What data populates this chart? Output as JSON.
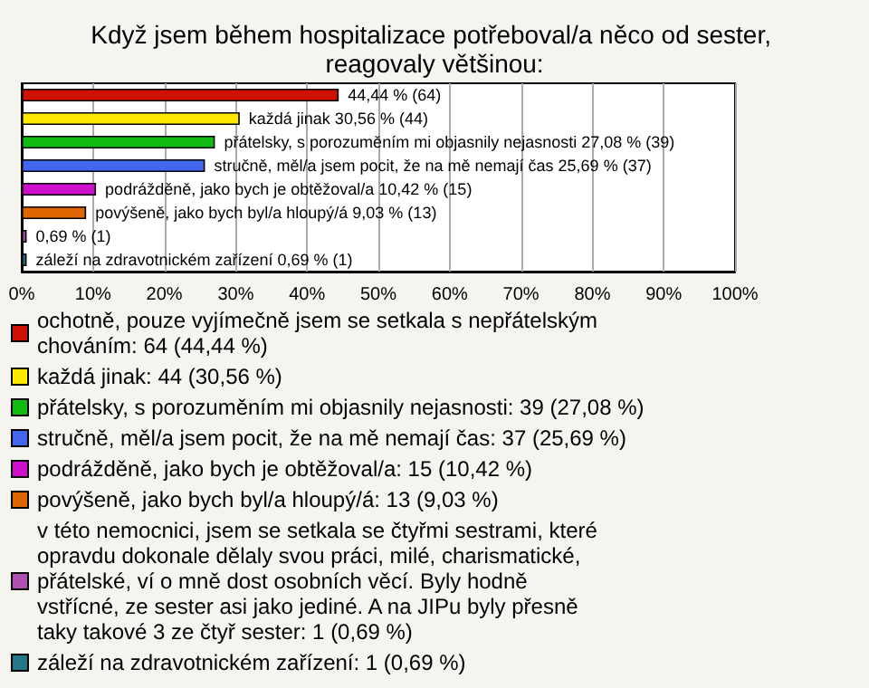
{
  "chart_data": {
    "type": "bar",
    "orientation": "horizontal",
    "stacked": true,
    "title": "Když jsem během hospitalizace potřeboval/a něco od sester, reagovaly většinou:",
    "categories": [
      null,
      null,
      null,
      null,
      null,
      null,
      null,
      null
    ],
    "series": [
      {
        "name": "ochotně, pouze vyjímečně jsem se setkala s nepřátelským chováním: 64 (44,44 %)",
        "color": "#cc1100",
        "values": [
          44.44,
          null,
          null,
          null,
          null,
          null,
          null,
          null
        ],
        "value_labels": [
          "44,44 % (64)",
          null,
          null,
          null,
          null,
          null,
          null,
          null
        ]
      },
      {
        "name": "každá jinak: 44 (30,56 %)",
        "color": "#ffe800",
        "values": [
          null,
          30.56,
          null,
          null,
          null,
          null,
          null,
          null
        ],
        "value_labels": [
          null,
          "každá jinak 30,56 % (44)",
          null,
          null,
          null,
          null,
          null,
          null
        ]
      },
      {
        "name": "přátelsky, s porozuměním mi objasnily nejasnosti: 39 (27,08 %)",
        "color": "#11bb11",
        "values": [
          null,
          null,
          27.08,
          null,
          null,
          null,
          null,
          null
        ],
        "value_labels": [
          null,
          null,
          "přátelsky, s porozuměním mi objasnily nejasnosti 27,08 % (39)",
          null,
          null,
          null,
          null,
          null
        ]
      },
      {
        "name": "stručně, měl/a jsem pocit, že na mě nemají čas: 37 (25,69 %)",
        "color": "#4466ee",
        "values": [
          null,
          null,
          null,
          25.69,
          null,
          null,
          null,
          null
        ],
        "value_labels": [
          null,
          null,
          null,
          "stručně, měl/a jsem pocit, že na mě nemají čas 25,69 % (37)",
          null,
          null,
          null,
          null
        ]
      },
      {
        "name": "podrážděně, jako bych je obtěžoval/a: 15 (10,42 %)",
        "color": "#cc11cc",
        "values": [
          null,
          null,
          null,
          null,
          10.42,
          null,
          null,
          null
        ],
        "value_labels": [
          null,
          null,
          null,
          null,
          "podrážděně, jako bych je obtěžoval/a 10,42 % (15)",
          null,
          null,
          null
        ]
      },
      {
        "name": "povýšeně, jako bych byl/a hloupý/á: 13 (9,03 %)",
        "color": "#dd6600",
        "values": [
          null,
          null,
          null,
          null,
          null,
          9.03,
          null,
          null
        ],
        "value_labels": [
          null,
          null,
          null,
          null,
          null,
          "povýšeně, jako bych byl/a hloupý/á 9,03 % (13)",
          null,
          null
        ]
      },
      {
        "name": "v této nemocnici, jsem se setkala se čtyřmi sestrami, které opravdu dokonale dělaly svou práci, milé, charismatické, přátelské, ví o mně dost osobních věcí. Byly hodně vstřícné, ze sester asi jako jediné. A na JIPu byly přesně taky takové 3 ze čtyř sester: 1 (0,69 %)",
        "color": "#b050b0",
        "values": [
          null,
          null,
          null,
          null,
          null,
          null,
          0.69,
          null
        ],
        "value_labels": [
          null,
          null,
          null,
          null,
          null,
          null,
          "0,69 % (1)",
          null
        ]
      },
      {
        "name": "záleží na zdravotnickém zařízení: 1 (0,69 %)",
        "color": "#227788",
        "values": [
          null,
          null,
          null,
          null,
          null,
          null,
          null,
          0.69
        ],
        "value_labels": [
          null,
          null,
          null,
          null,
          null,
          null,
          null,
          "záleží na zdravotnickém zařízení 0,69 % (1)"
        ]
      }
    ],
    "xlim": [
      0,
      100
    ],
    "xticks": [
      {
        "value": 0,
        "label": "0%"
      },
      {
        "value": 10,
        "label": "10%"
      },
      {
        "value": 20,
        "label": "20%"
      },
      {
        "value": 30,
        "label": "30%"
      },
      {
        "value": 40,
        "label": "40%"
      },
      {
        "value": 50,
        "label": "50%"
      },
      {
        "value": 60,
        "label": "60%"
      },
      {
        "value": 70,
        "label": "70%"
      },
      {
        "value": 80,
        "label": "80%"
      },
      {
        "value": 90,
        "label": "90%"
      },
      {
        "value": 100,
        "label": "100%"
      }
    ],
    "grid": "x",
    "legend": "bottom"
  }
}
